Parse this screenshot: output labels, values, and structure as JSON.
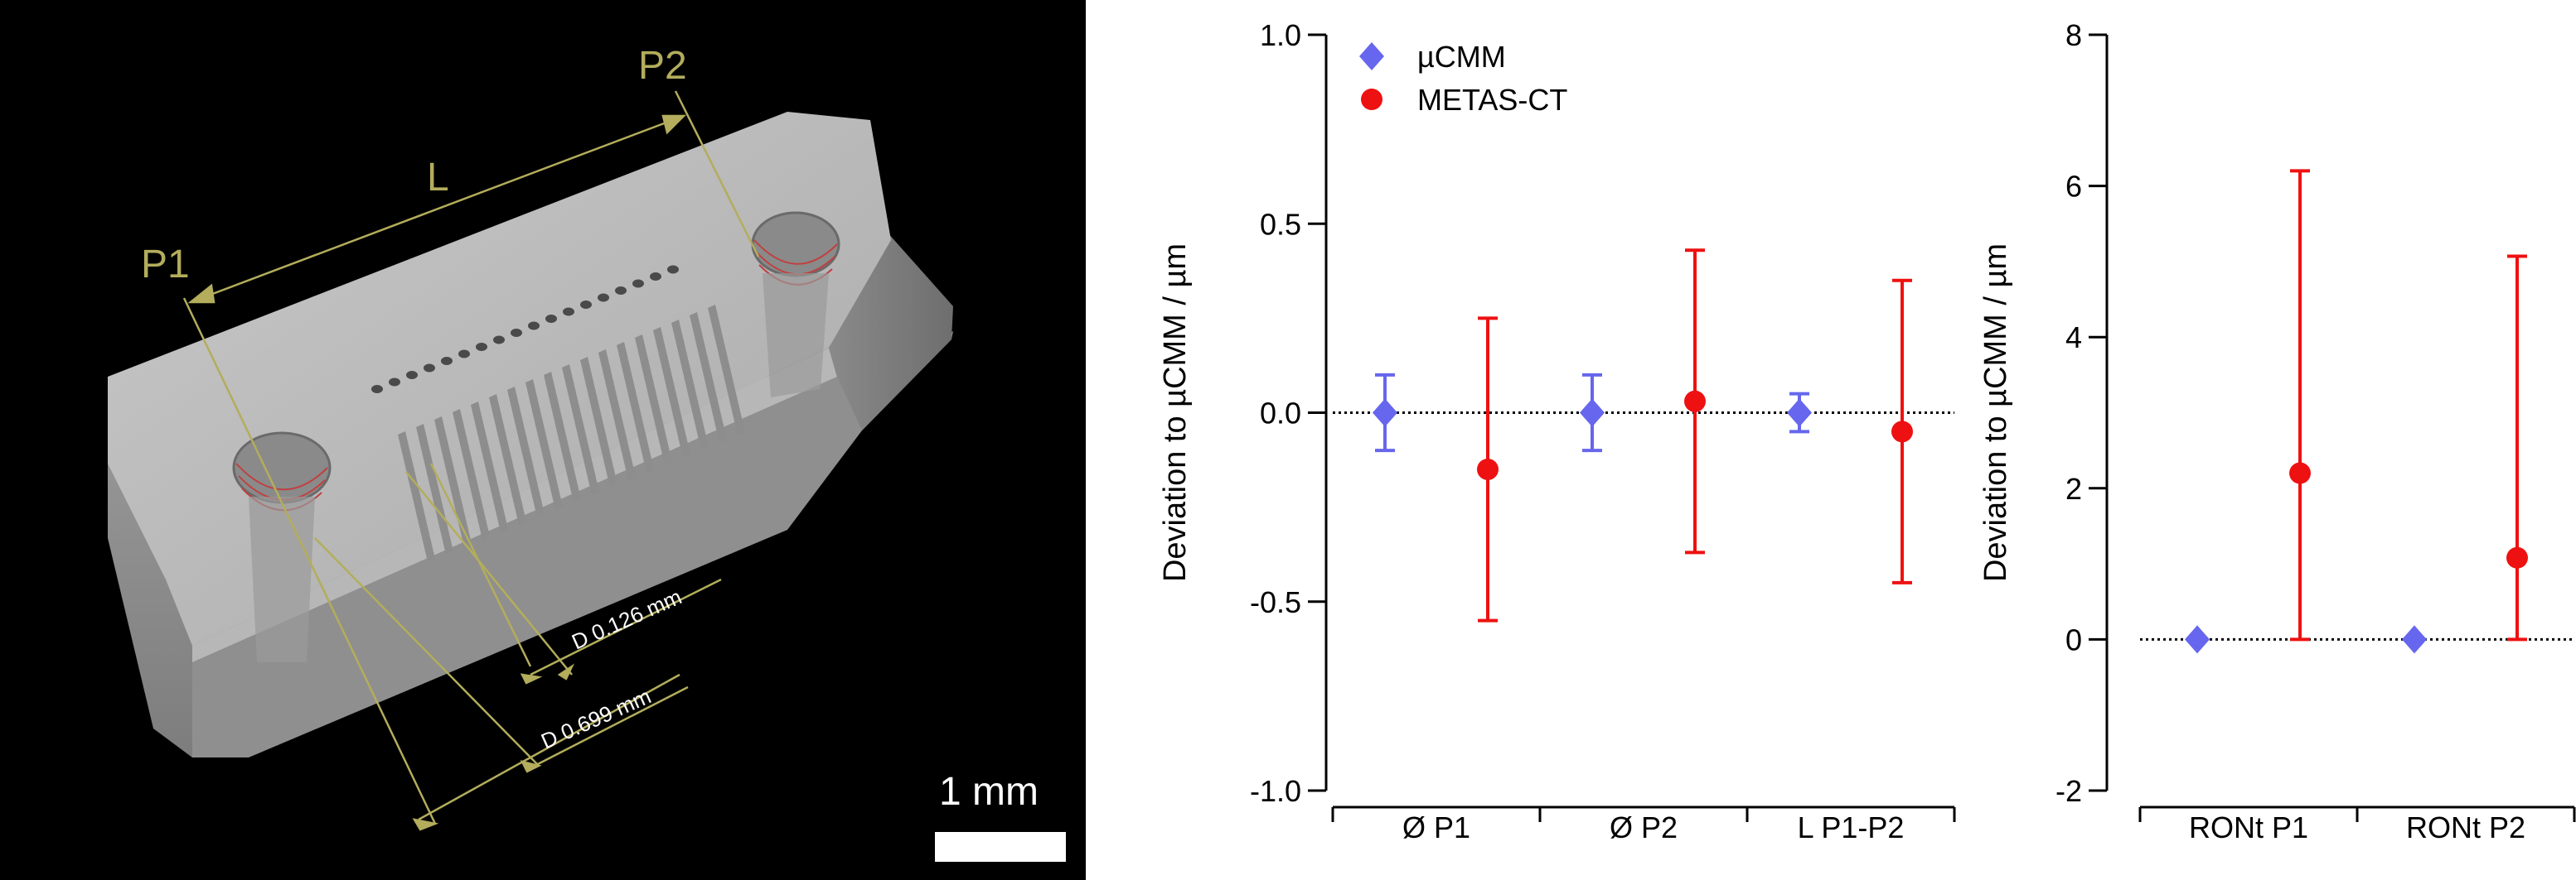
{
  "render": {
    "labels": {
      "p1": "P1",
      "p2": "P2",
      "l": "L"
    },
    "dimensions": {
      "d_small": "D 0.126 mm",
      "d_large": "D 0.699 mm"
    },
    "scale_bar": "1 mm",
    "colors": {
      "annotation": "#b3ad5c",
      "background": "#000000"
    }
  },
  "chart_data": [
    {
      "type": "scatter",
      "ylabel": "Deviation to µCMM / µm",
      "xlabel": "",
      "ylim": [
        -1.0,
        1.0
      ],
      "yticks": [
        "1.0",
        "0.5",
        "0.0",
        "-0.5",
        "-1.0"
      ],
      "ytick_values": [
        1.0,
        0.5,
        0.0,
        -0.5,
        -1.0
      ],
      "categories": [
        "Ø P1",
        "Ø P2",
        "L P1-P2"
      ],
      "reference_line": 0,
      "legend": {
        "placement": "top-left",
        "entries": [
          "µCMM",
          "METAS-CT"
        ]
      },
      "series": [
        {
          "name": "µCMM",
          "marker": "diamond",
          "color": "#6666ee",
          "values": [
            0.0,
            0.0,
            0.0
          ],
          "err_low": [
            -0.1,
            -0.1,
            -0.05
          ],
          "err_high": [
            0.1,
            0.1,
            0.05
          ]
        },
        {
          "name": "METAS-CT",
          "marker": "circle",
          "color": "#ee1111",
          "values": [
            -0.15,
            0.03,
            -0.05
          ],
          "err_low": [
            -0.55,
            -0.37,
            -0.45
          ],
          "err_high": [
            0.25,
            0.43,
            0.35
          ]
        }
      ]
    },
    {
      "type": "scatter",
      "ylabel": "Deviation to µCMM / µm",
      "xlabel": "",
      "ylim": [
        -2,
        8
      ],
      "yticks": [
        "8",
        "6",
        "4",
        "2",
        "0",
        "-2"
      ],
      "ytick_values": [
        8,
        6,
        4,
        2,
        0,
        -2
      ],
      "categories": [
        "RONt P1",
        "RONt P2"
      ],
      "reference_line": 0,
      "series": [
        {
          "name": "µCMM",
          "marker": "diamond",
          "color": "#6666ee",
          "values": [
            0,
            0
          ],
          "err_low": [
            0,
            0
          ],
          "err_high": [
            0,
            0
          ]
        },
        {
          "name": "METAS-CT",
          "marker": "circle",
          "color": "#ee1111",
          "values": [
            2.2,
            1.08
          ],
          "err_low": [
            0,
            0
          ],
          "err_high": [
            6.2,
            5.07
          ]
        }
      ]
    }
  ]
}
